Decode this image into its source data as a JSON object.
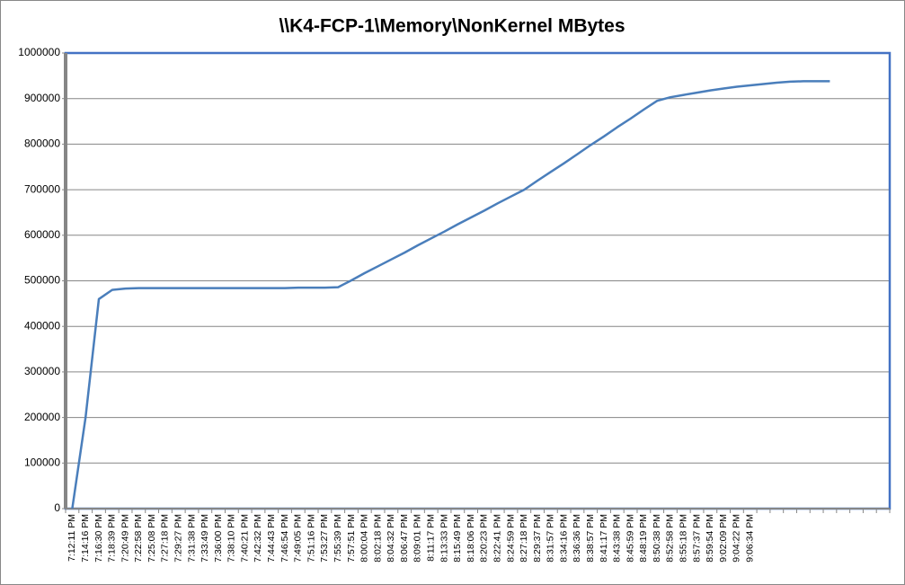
{
  "chart_data": {
    "type": "line",
    "title": "\\\\K4-FCP-1\\Memory\\NonKernel MBytes",
    "categories": [
      "7:12:11 PM",
      "7:14:16 PM",
      "7:16:30 PM",
      "7:18:39 PM",
      "7:20:49 PM",
      "7:22:58 PM",
      "7:25:08 PM",
      "7:27:18 PM",
      "7:29:27 PM",
      "7:31:38 PM",
      "7:33:49 PM",
      "7:36:00 PM",
      "7:38:10 PM",
      "7:40:21 PM",
      "7:42:32 PM",
      "7:44:43 PM",
      "7:46:54 PM",
      "7:49:05 PM",
      "7:51:16 PM",
      "7:53:27 PM",
      "7:55:39 PM",
      "7:57:51 PM",
      "8:00:04 PM",
      "8:02:18 PM",
      "8:04:32 PM",
      "8:06:47 PM",
      "8:09:01 PM",
      "8:11:17 PM",
      "8:13:33 PM",
      "8:15:49 PM",
      "8:18:06 PM",
      "8:20:23 PM",
      "8:22:41 PM",
      "8:24:59 PM",
      "8:27:18 PM",
      "8:29:37 PM",
      "8:31:57 PM",
      "8:34:16 PM",
      "8:36:36 PM",
      "8:38:57 PM",
      "8:41:17 PM",
      "8:43:38 PM",
      "8:45:59 PM",
      "8:48:19 PM",
      "8:50:38 PM",
      "8:52:58 PM",
      "8:55:18 PM",
      "8:57:37 PM",
      "8:59:54 PM",
      "9:02:09 PM",
      "9:04:22 PM",
      "9:06:34 PM",
      null,
      null,
      null,
      null,
      null,
      null,
      null,
      null,
      null,
      null
    ],
    "series": [
      {
        "color": "#4a7ebb",
        "values": [
          0,
          200000,
          460000,
          480000,
          483000,
          484000,
          484000,
          484000,
          484000,
          484000,
          484000,
          484000,
          484000,
          484000,
          484000,
          484000,
          484000,
          485000,
          485000,
          485000,
          486000,
          501000,
          517000,
          532000,
          547000,
          562000,
          578000,
          593000,
          608000,
          624000,
          639000,
          654000,
          670000,
          685000,
          700000,
          720000,
          739000,
          758000,
          778000,
          798000,
          817000,
          837000,
          856000,
          876000,
          895000,
          903000,
          908000,
          913000,
          918000,
          922000,
          926000,
          929000,
          932000,
          935000,
          937000,
          938000,
          938000,
          938000,
          null,
          null,
          null,
          null
        ]
      }
    ],
    "ylim": [
      0,
      1000000
    ],
    "yticks": [
      0,
      100000,
      200000,
      300000,
      400000,
      500000,
      600000,
      700000,
      800000,
      900000,
      1000000
    ],
    "grid": true
  }
}
